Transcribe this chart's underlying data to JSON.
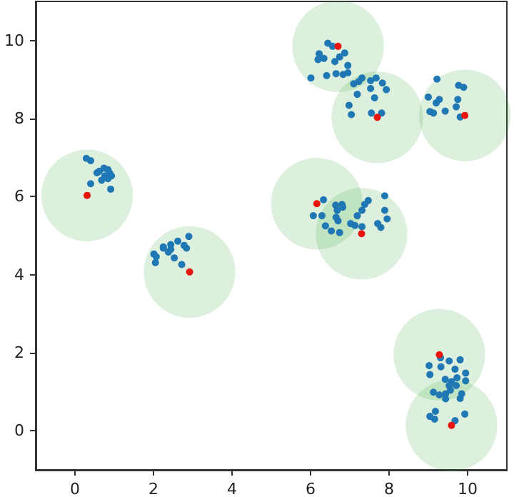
{
  "chart_data": {
    "type": "scatter",
    "xlim": [
      -1,
      11
    ],
    "ylim": [
      -1,
      11
    ],
    "xticks": [
      0,
      2,
      4,
      6,
      8,
      10
    ],
    "yticks": [
      0,
      2,
      4,
      6,
      8,
      10
    ],
    "grid": false,
    "marker": "circle",
    "series": [
      {
        "type": "bubble",
        "color": "#2ca02c",
        "x": [
          0.31,
          2.92,
          6.7,
          7.7,
          9.93,
          6.16,
          7.3,
          9.28,
          9.59
        ],
        "values": [
          6.03,
          4.07,
          9.85,
          8.03,
          8.08,
          5.82,
          5.05,
          1.95,
          0.14
        ],
        "sizes": [
          1,
          1,
          1,
          1,
          1,
          1,
          1,
          1,
          1
        ]
      },
      {
        "color": "#1f77b4",
        "x": [
          0.29,
          0.4,
          0.56,
          0.62,
          0.74,
          0.84,
          0.88,
          0.93,
          0.76,
          0.68,
          0.84,
          0.91,
          0.4,
          2.01,
          2.07,
          2.05,
          2.25,
          2.38,
          2.44,
          2.53,
          2.72,
          2.84,
          2.9,
          2.62,
          2.44,
          2.25,
          2.78,
          6.44,
          6.56,
          6.22,
          6.19,
          6.34,
          6.62,
          6.74,
          6.87,
          6.95,
          6.41,
          6.65,
          6.83,
          6.95,
          6.01,
          7.1,
          7.23,
          7.31,
          7.53,
          7.67,
          7.83,
          7.93,
          7.53,
          7.19,
          7.63,
          6.98,
          7.04,
          7.55,
          7.81,
          9.22,
          9.77,
          9.9,
          9.0,
          9.2,
          9.28,
          9.75,
          9.71,
          9.04,
          9.13,
          9.43,
          9.81,
          6.33,
          6.64,
          6.8,
          6.82,
          6.68,
          6.07,
          6.29,
          6.65,
          6.7,
          6.38,
          6.53,
          6.74,
          7.02,
          7.13,
          7.19,
          7.31,
          7.38,
          7.47,
          7.89,
          7.89,
          7.95,
          7.71,
          7.79,
          7.31,
          9.31,
          9.53,
          9.81,
          9.02,
          9.32,
          9.68,
          9.04,
          9.95,
          9.43,
          9.59,
          9.73,
          9.95,
          9.53,
          9.71,
          9.13,
          9.28,
          9.44,
          9.56,
          9.85,
          9.81,
          9.44,
          9.18,
          9.04,
          9.16,
          9.93,
          9.68
        ],
        "values": [
          6.98,
          6.92,
          6.61,
          6.65,
          6.73,
          6.69,
          6.61,
          6.53,
          6.53,
          6.42,
          6.46,
          6.19,
          6.33,
          4.53,
          4.46,
          4.31,
          4.68,
          4.58,
          4.65,
          4.43,
          4.26,
          4.68,
          4.98,
          4.86,
          4.77,
          4.71,
          4.75,
          9.93,
          9.85,
          9.66,
          9.51,
          9.54,
          9.46,
          9.58,
          9.68,
          9.36,
          9.1,
          9.15,
          9.13,
          9.17,
          9.04,
          8.89,
          8.95,
          9.04,
          8.97,
          9.04,
          8.91,
          8.74,
          8.77,
          8.62,
          8.53,
          8.34,
          8.1,
          8.14,
          8.14,
          9.01,
          8.85,
          8.8,
          8.55,
          8.4,
          8.49,
          8.49,
          8.3,
          8.18,
          8.14,
          8.19,
          8.04,
          5.92,
          5.78,
          5.8,
          5.73,
          5.65,
          5.51,
          5.51,
          5.47,
          5.38,
          5.25,
          5.12,
          5.08,
          5.31,
          5.26,
          5.51,
          5.65,
          5.8,
          5.9,
          6.02,
          5.65,
          5.43,
          5.31,
          5.21,
          5.23,
          1.87,
          1.79,
          1.82,
          1.67,
          1.64,
          1.58,
          1.44,
          1.48,
          1.32,
          1.26,
          1.36,
          1.28,
          1.16,
          1.16,
          0.99,
          0.92,
          0.95,
          1.04,
          0.95,
          0.83,
          0.82,
          0.5,
          0.37,
          0.3,
          0.43,
          0.26
        ]
      },
      {
        "type": "scatter",
        "color": "#e8150f",
        "x": [
          0.31,
          2.92,
          6.7,
          7.7,
          9.93,
          6.16,
          7.3,
          9.28,
          9.59
        ],
        "values": [
          6.03,
          4.07,
          9.85,
          8.03,
          8.08,
          5.82,
          5.05,
          1.95,
          0.14
        ]
      }
    ]
  }
}
